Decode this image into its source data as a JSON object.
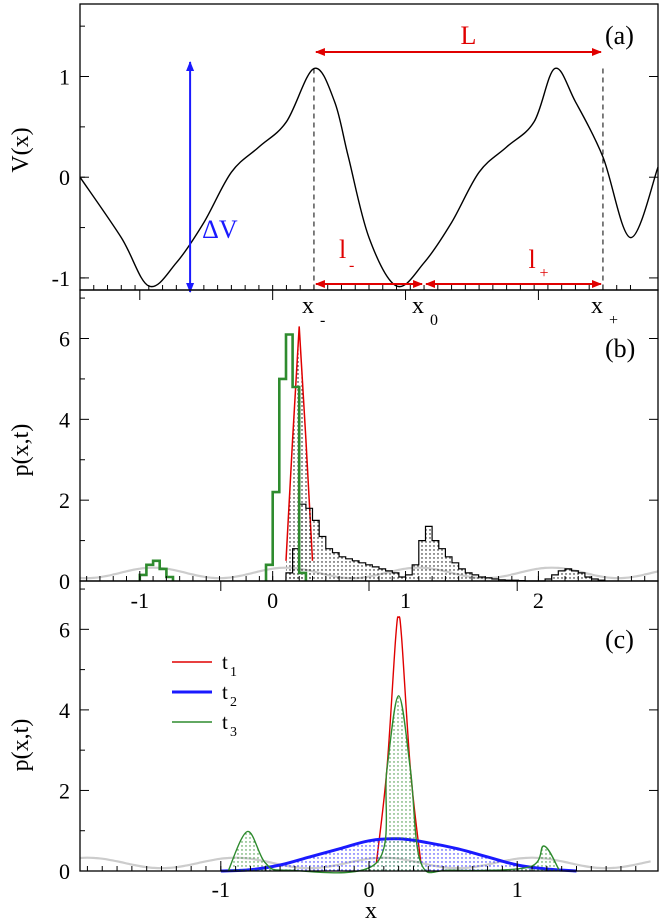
{
  "chart_data": [
    {
      "panel": "(a)",
      "type": "line",
      "ylabel": "V(x)",
      "xlim": [
        -1.9,
        2.3
      ],
      "ylim": [
        -1.12,
        1.72
      ],
      "yticks": [
        -1,
        0,
        1
      ],
      "ytick_labels": [
        "-1",
        "0",
        "1"
      ],
      "potential": {
        "x": [
          -1.9,
          -1.6,
          -1.4,
          -1.2,
          -1.0,
          -0.8,
          -0.6,
          -0.4,
          -0.2,
          -0.05,
          0.05,
          0.2,
          0.4,
          0.6,
          0.8,
          1.0,
          1.2,
          1.4,
          1.55,
          1.7,
          1.9,
          2.1,
          2.3
        ],
        "y": [
          0.0,
          -0.6,
          -1.08,
          -0.85,
          -0.45,
          0.05,
          0.3,
          0.55,
          1.08,
          0.75,
          0.2,
          -0.6,
          -1.08,
          -0.85,
          -0.45,
          0.05,
          0.3,
          0.55,
          1.08,
          0.75,
          0.2,
          -0.6,
          0.1
        ]
      },
      "annotations": {
        "L": "L",
        "deltaV": "ΔV",
        "l_minus": "l",
        "l_minus_sub": "-",
        "l_plus": "l",
        "l_plus_sub": "+",
        "x_minus": "x",
        "x_minus_sub": "-",
        "x_zero": "x",
        "x_zero_sub": "0",
        "x_plus": "x",
        "x_plus_sub": "+"
      },
      "marker_x": {
        "x_minus": -0.2,
        "x_zero": 0.6,
        "x_plus": 1.9
      },
      "deltaV_x": -1.1,
      "colors": {
        "curve": "#000000",
        "L": "#e00000",
        "deltaV": "#1a1aff"
      }
    },
    {
      "panel": "(b)",
      "type": "histogram",
      "ylabel": "p(x,t)",
      "xlim": [
        -1.45,
        2.9
      ],
      "ylim": [
        0,
        7.2
      ],
      "yticks": [
        0,
        2,
        4,
        6
      ],
      "ytick_labels": [
        "0",
        "2",
        "4",
        "6"
      ],
      "xticks": [
        -1,
        0,
        1,
        2
      ],
      "xtick_labels": [
        "-1",
        "0",
        "1",
        "2"
      ],
      "bin_width": 0.05,
      "series": [
        {
          "name": "red",
          "style": "line",
          "color": "#e00000",
          "x": [
            0.1,
            0.15,
            0.2,
            0.25,
            0.3
          ],
          "y": [
            0.5,
            3.5,
            6.3,
            3.5,
            0.5
          ]
        },
        {
          "name": "black",
          "style": "step-hatched",
          "color": "#000000",
          "bin_start": 0.1,
          "values": [
            0.2,
            0.8,
            1.9,
            1.8,
            1.5,
            1.1,
            0.8,
            0.7,
            0.6,
            0.55,
            0.5,
            0.45,
            0.4,
            0.35,
            0.3,
            0.25,
            0.2,
            0.1,
            0.15,
            0.4,
            1.0,
            1.35,
            1.0,
            0.8,
            0.6,
            0.45,
            0.3,
            0.2,
            0.15,
            0.1,
            0.08,
            0.05,
            0.03,
            0.02,
            0.02,
            0.01,
            0.0,
            0.0,
            0.0,
            0.05,
            0.15,
            0.25,
            0.3,
            0.25,
            0.2,
            0.1,
            0.05,
            0.02
          ]
        },
        {
          "name": "green",
          "style": "step",
          "color": "#2e8b2e",
          "bin_start": -1.0,
          "values": [
            0.15,
            0.4,
            0.5,
            0.3,
            0.1
          ]
        },
        {
          "name": "green-main",
          "style": "step",
          "color": "#2e8b2e",
          "bin_start": -0.05,
          "values": [
            0.4,
            2.2,
            5.0,
            6.1,
            4.8,
            0.2
          ]
        }
      ],
      "background_potential": {
        "color": "#cccccc"
      }
    },
    {
      "panel": "(c)",
      "type": "line",
      "xlabel": "x",
      "ylabel": "p(x,t)",
      "xlim": [
        -1.95,
        1.95
      ],
      "ylim": [
        0,
        7.2
      ],
      "yticks": [
        0,
        2,
        4,
        6
      ],
      "ytick_labels": [
        "0",
        "2",
        "4",
        "6"
      ],
      "xticks": [
        -1,
        0,
        1
      ],
      "xtick_labels": [
        "-1",
        "0",
        "1"
      ],
      "legend": {
        "position": "upper-left",
        "entries": [
          "t",
          "t",
          "t"
        ],
        "subscripts": [
          "1",
          "2",
          "3"
        ]
      },
      "series": [
        {
          "name": "t1",
          "color": "#e00000",
          "x": [
            0.05,
            0.12,
            0.18,
            0.2,
            0.22,
            0.28,
            0.35
          ],
          "y": [
            0.2,
            2.5,
            5.8,
            6.3,
            5.8,
            2.5,
            0.2
          ]
        },
        {
          "name": "t2",
          "color": "#1a1aff",
          "x": [
            -1.0,
            -0.8,
            -0.6,
            -0.4,
            -0.2,
            0.0,
            0.2,
            0.4,
            0.6,
            0.8,
            1.0,
            1.2,
            1.4
          ],
          "y": [
            0.0,
            0.03,
            0.15,
            0.35,
            0.55,
            0.75,
            0.8,
            0.7,
            0.55,
            0.35,
            0.15,
            0.05,
            0.0
          ]
        },
        {
          "name": "t3",
          "color": "#2e8b2e",
          "x": [
            -0.95,
            -0.82,
            -0.7,
            -0.55,
            0.05,
            0.12,
            0.2,
            0.28,
            0.35,
            0.55,
            1.08,
            1.18,
            1.28
          ],
          "y": [
            0.0,
            0.98,
            0.2,
            0.02,
            0.2,
            2.5,
            4.35,
            2.5,
            0.2,
            0.02,
            0.1,
            0.62,
            0.05
          ]
        }
      ],
      "background_potential": {
        "color": "#cccccc"
      }
    }
  ]
}
